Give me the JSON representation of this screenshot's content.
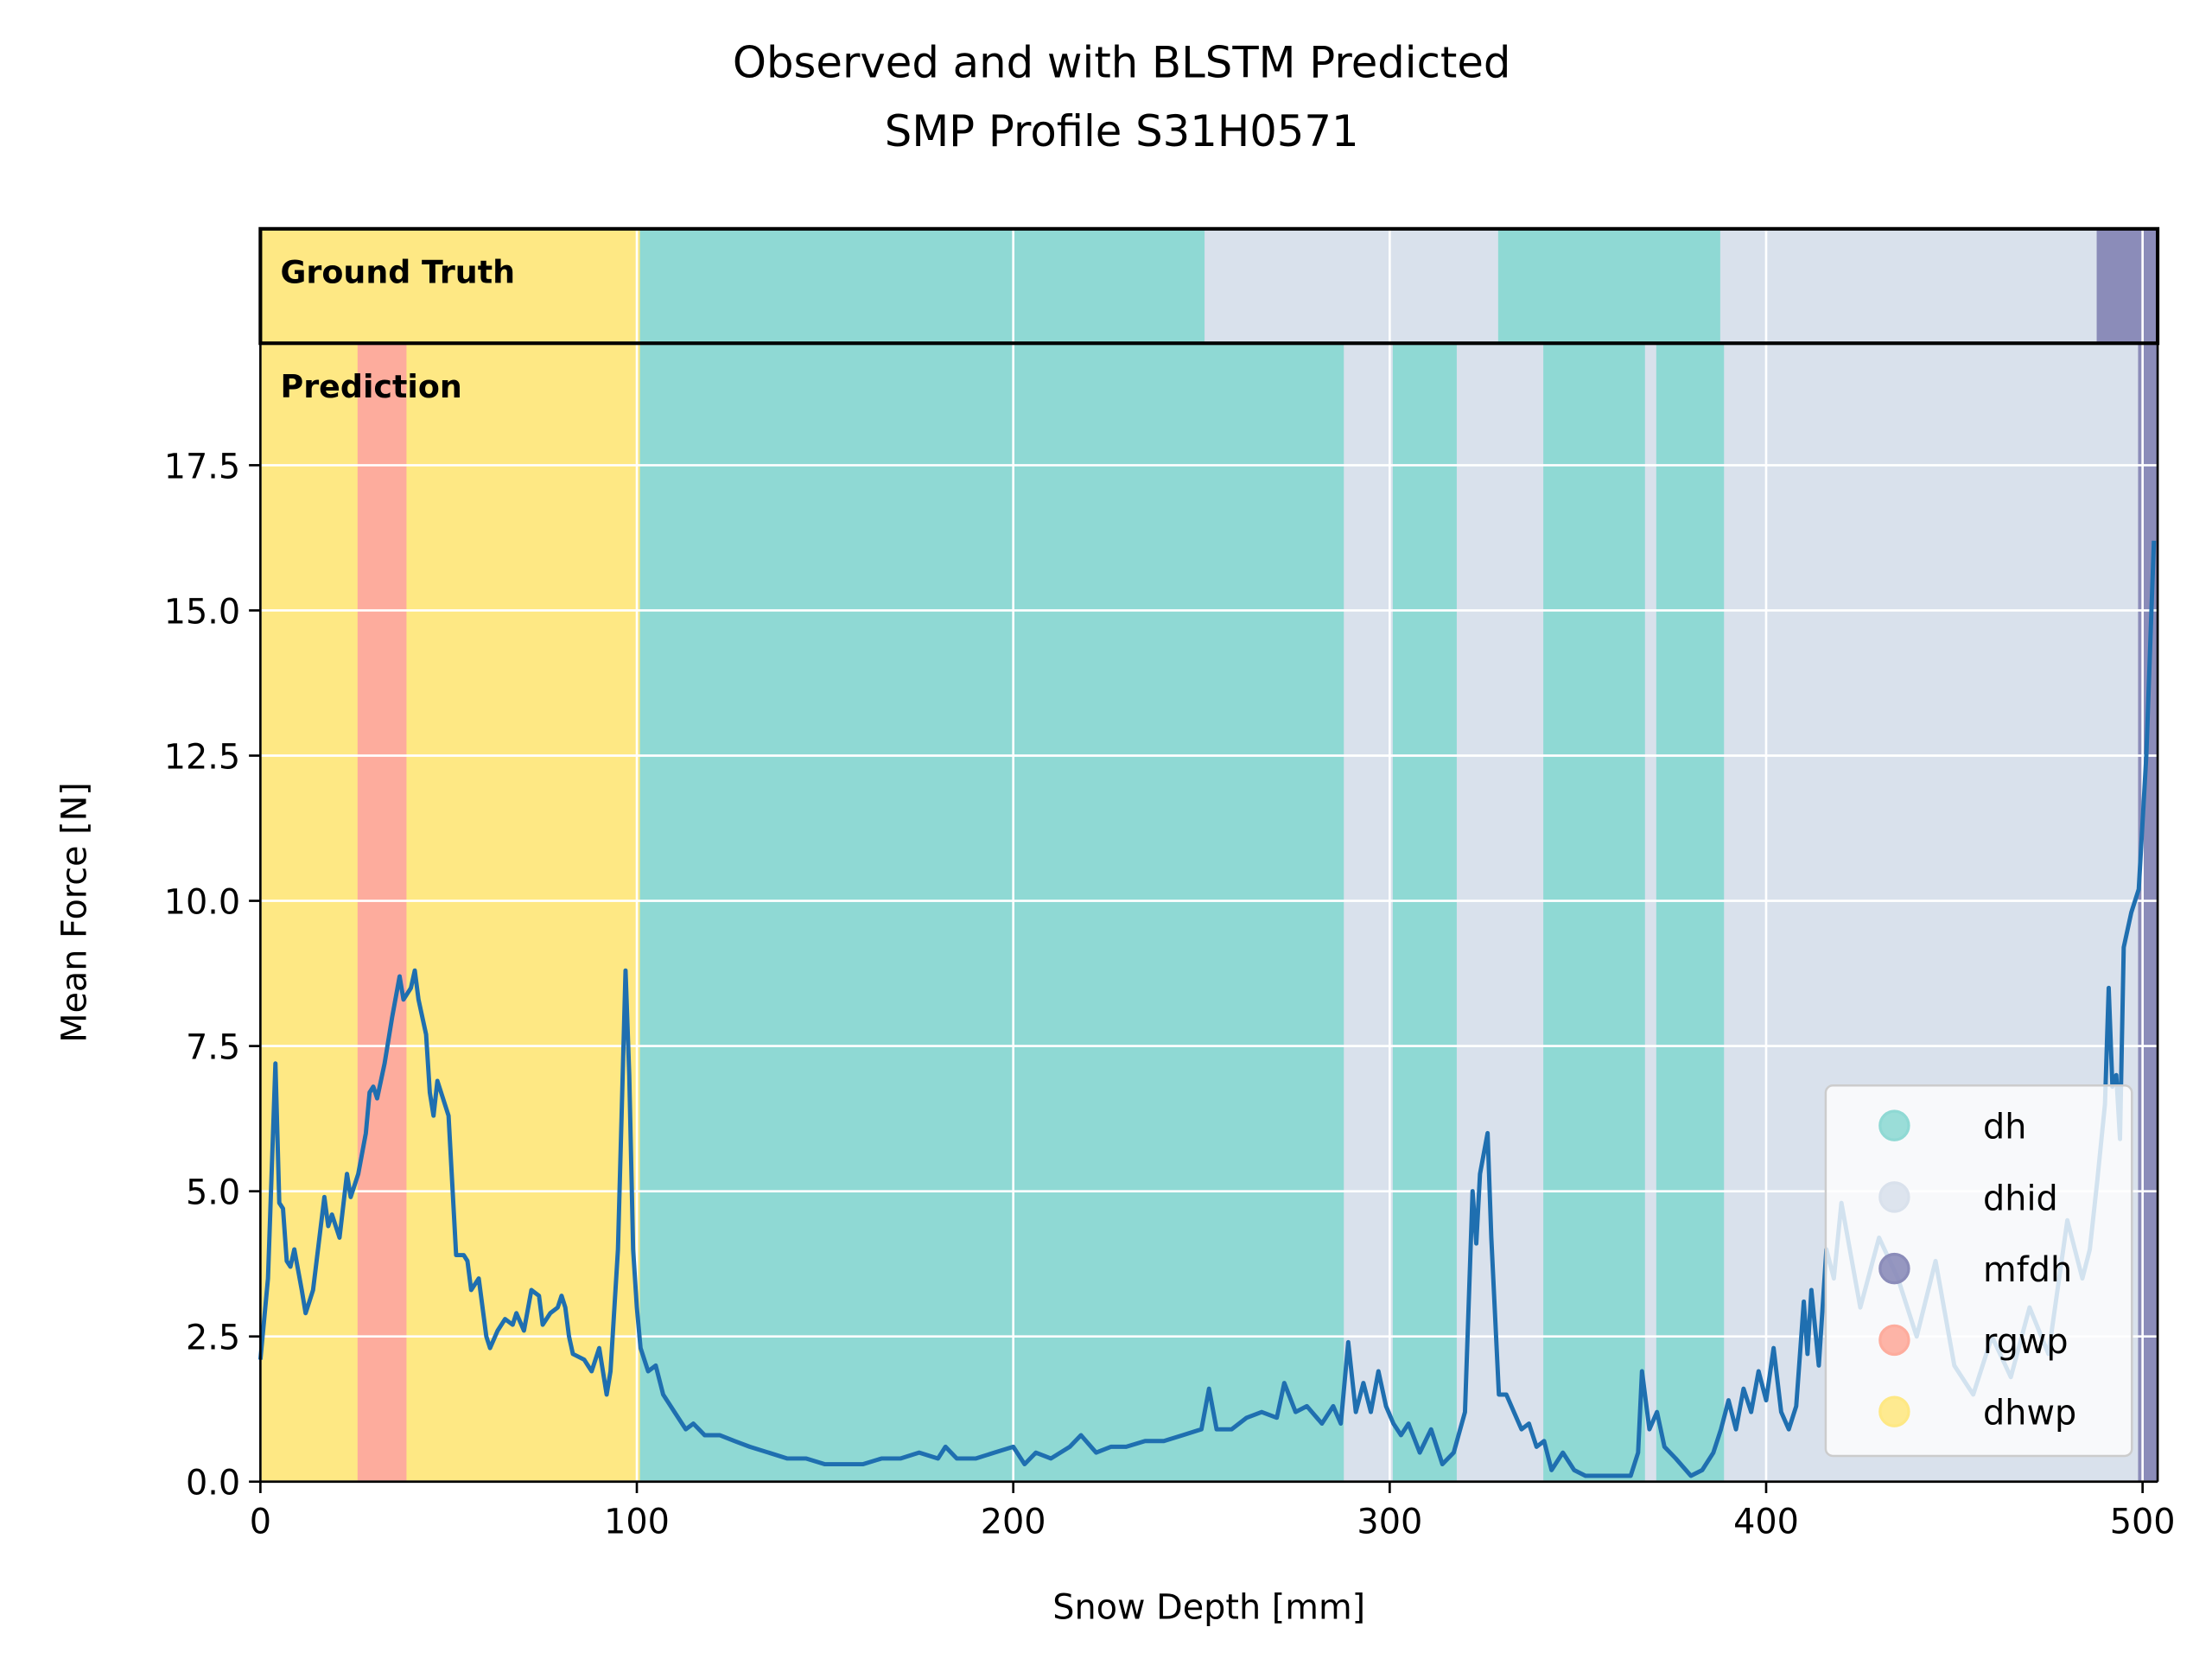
{
  "chart_data": {
    "type": "segments-line",
    "title": [
      "Observed and with BLSTM Predicted",
      "SMP Profile S31H0571"
    ],
    "xlabel": "Snow Depth [mm]",
    "ylabel": "Mean Force [N]",
    "xlim": [
      0,
      504
    ],
    "ylim": [
      0,
      19.6
    ],
    "xticks": [
      0,
      100,
      200,
      300,
      400,
      500
    ],
    "yticks": [
      {
        "value": 0,
        "label": "0.0"
      },
      2.5,
      {
        "value": 5,
        "label": "5.0"
      },
      7.5,
      {
        "value": 10,
        "label": "10.0"
      },
      12.5,
      {
        "value": 15,
        "label": "15.0"
      },
      17.5
    ],
    "grid": true,
    "legend_loc": "lower right",
    "classes": [
      {
        "name": "dh",
        "color": "#8fd9d4"
      },
      {
        "name": "dhid",
        "color": "#d9e1ec"
      },
      {
        "name": "mfdh",
        "color": "#8b8cb9"
      },
      {
        "name": "rgwp",
        "color": "#fdac9d"
      },
      {
        "name": "dhwp",
        "color": "#fee884"
      }
    ],
    "ground_truth": {
      "label": "Ground Truth",
      "segments": [
        {
          "start": 0,
          "end": 101,
          "class": "dhwp"
        },
        {
          "start": 101,
          "end": 251,
          "class": "dh"
        },
        {
          "start": 251,
          "end": 329,
          "class": "dhid"
        },
        {
          "start": 329,
          "end": 388,
          "class": "dh"
        },
        {
          "start": 388,
          "end": 488,
          "class": "dhid"
        },
        {
          "start": 488,
          "end": 504,
          "class": "mfdh"
        }
      ]
    },
    "prediction": {
      "label": "Prediction",
      "segments": [
        {
          "start": 0,
          "end": 26,
          "class": "dhwp"
        },
        {
          "start": 26,
          "end": 39,
          "class": "rgwp"
        },
        {
          "start": 39,
          "end": 101,
          "class": "dhwp"
        },
        {
          "start": 101,
          "end": 288,
          "class": "dh"
        },
        {
          "start": 288,
          "end": 301,
          "class": "dhid"
        },
        {
          "start": 301,
          "end": 318,
          "class": "dh"
        },
        {
          "start": 318,
          "end": 341,
          "class": "dhid"
        },
        {
          "start": 341,
          "end": 368,
          "class": "dh"
        },
        {
          "start": 368,
          "end": 371,
          "class": "dhid"
        },
        {
          "start": 371,
          "end": 389,
          "class": "dh"
        },
        {
          "start": 389,
          "end": 499,
          "class": "dhid"
        },
        {
          "start": 499,
          "end": 504,
          "class": "mfdh"
        }
      ]
    },
    "line": {
      "color": "#1f6fb0",
      "x": [
        0,
        2,
        4,
        5,
        6,
        7,
        8,
        9,
        11,
        12,
        14,
        17,
        18,
        19,
        21,
        23,
        24,
        26,
        28,
        29,
        30,
        31,
        33,
        35,
        37,
        38,
        40,
        41,
        42,
        44,
        45,
        46,
        47,
        48,
        50,
        52,
        54,
        55,
        56,
        58,
        60,
        61,
        63,
        65,
        67,
        68,
        70,
        72,
        74,
        75,
        77,
        79,
        80,
        81,
        82,
        83,
        86,
        88,
        90,
        92,
        93,
        95,
        97,
        98,
        99,
        100,
        101,
        103,
        105,
        107,
        110,
        113,
        115,
        118,
        122,
        126,
        130,
        135,
        140,
        145,
        150,
        155,
        160,
        165,
        170,
        175,
        180,
        182,
        185,
        190,
        195,
        200,
        203,
        206,
        210,
        215,
        218,
        222,
        226,
        230,
        235,
        240,
        245,
        250,
        252,
        254,
        258,
        262,
        266,
        270,
        272,
        275,
        278,
        282,
        285,
        287,
        289,
        291,
        293,
        295,
        297,
        299,
        301,
        303,
        305,
        308,
        311,
        314,
        317,
        320,
        322,
        323,
        324,
        326,
        327,
        329,
        331,
        333,
        335,
        337,
        339,
        341,
        343,
        346,
        349,
        352,
        356,
        360,
        364,
        366,
        367,
        369,
        371,
        373,
        376,
        380,
        383,
        386,
        388,
        390,
        392,
        394,
        396,
        398,
        400,
        402,
        404,
        406,
        408,
        410,
        411,
        412,
        414,
        416,
        418,
        420,
        425,
        430,
        435,
        440,
        445,
        450,
        455,
        460,
        465,
        470,
        475,
        480,
        484,
        486,
        488,
        490,
        491,
        492,
        493,
        494,
        495,
        497,
        499,
        501,
        503
      ],
      "values": [
        2.1,
        3.5,
        7.2,
        4.8,
        4.7,
        3.8,
        3.7,
        4.0,
        3.3,
        2.9,
        3.3,
        4.9,
        4.4,
        4.6,
        4.2,
        5.3,
        4.9,
        5.3,
        6.0,
        6.7,
        6.8,
        6.6,
        7.2,
        8.0,
        8.7,
        8.3,
        8.5,
        8.8,
        8.3,
        7.7,
        6.7,
        6.3,
        6.9,
        6.7,
        6.3,
        3.9,
        3.9,
        3.8,
        3.3,
        3.5,
        2.5,
        2.3,
        2.6,
        2.8,
        2.7,
        2.9,
        2.6,
        3.3,
        3.2,
        2.7,
        2.9,
        3.0,
        3.2,
        3.0,
        2.5,
        2.2,
        2.1,
        1.9,
        2.3,
        1.5,
        1.9,
        4.0,
        8.8,
        7.0,
        4.0,
        3.0,
        2.3,
        1.9,
        2.0,
        1.5,
        1.2,
        0.9,
        1.0,
        0.8,
        0.8,
        0.7,
        0.6,
        0.5,
        0.4,
        0.4,
        0.3,
        0.3,
        0.3,
        0.4,
        0.4,
        0.5,
        0.4,
        0.6,
        0.4,
        0.4,
        0.5,
        0.6,
        0.3,
        0.5,
        0.4,
        0.6,
        0.8,
        0.5,
        0.6,
        0.6,
        0.7,
        0.7,
        0.8,
        0.9,
        1.6,
        0.9,
        0.9,
        1.1,
        1.2,
        1.1,
        1.7,
        1.2,
        1.3,
        1.0,
        1.3,
        1.0,
        2.4,
        1.2,
        1.7,
        1.2,
        1.9,
        1.3,
        1.0,
        0.8,
        1.0,
        0.5,
        0.9,
        0.3,
        0.5,
        1.2,
        5.0,
        4.1,
        5.3,
        6.0,
        4.2,
        1.5,
        1.5,
        1.2,
        0.9,
        1.0,
        0.6,
        0.7,
        0.2,
        0.5,
        0.2,
        0.1,
        0.1,
        0.1,
        0.1,
        0.5,
        1.9,
        0.9,
        1.2,
        0.6,
        0.4,
        0.1,
        0.2,
        0.5,
        0.9,
        1.4,
        0.9,
        1.6,
        1.2,
        1.9,
        1.4,
        2.3,
        1.2,
        0.9,
        1.3,
        3.1,
        2.2,
        3.3,
        2.0,
        4.0,
        3.5,
        4.8,
        3.0,
        4.2,
        3.5,
        2.5,
        3.8,
        2.0,
        1.5,
        2.5,
        1.8,
        3.0,
        2.2,
        4.5,
        3.5,
        4.0,
        5.2,
        6.5,
        8.5,
        6.8,
        7.0,
        5.9,
        9.2,
        9.8,
        10.2,
        12.5,
        16.2
      ]
    }
  }
}
